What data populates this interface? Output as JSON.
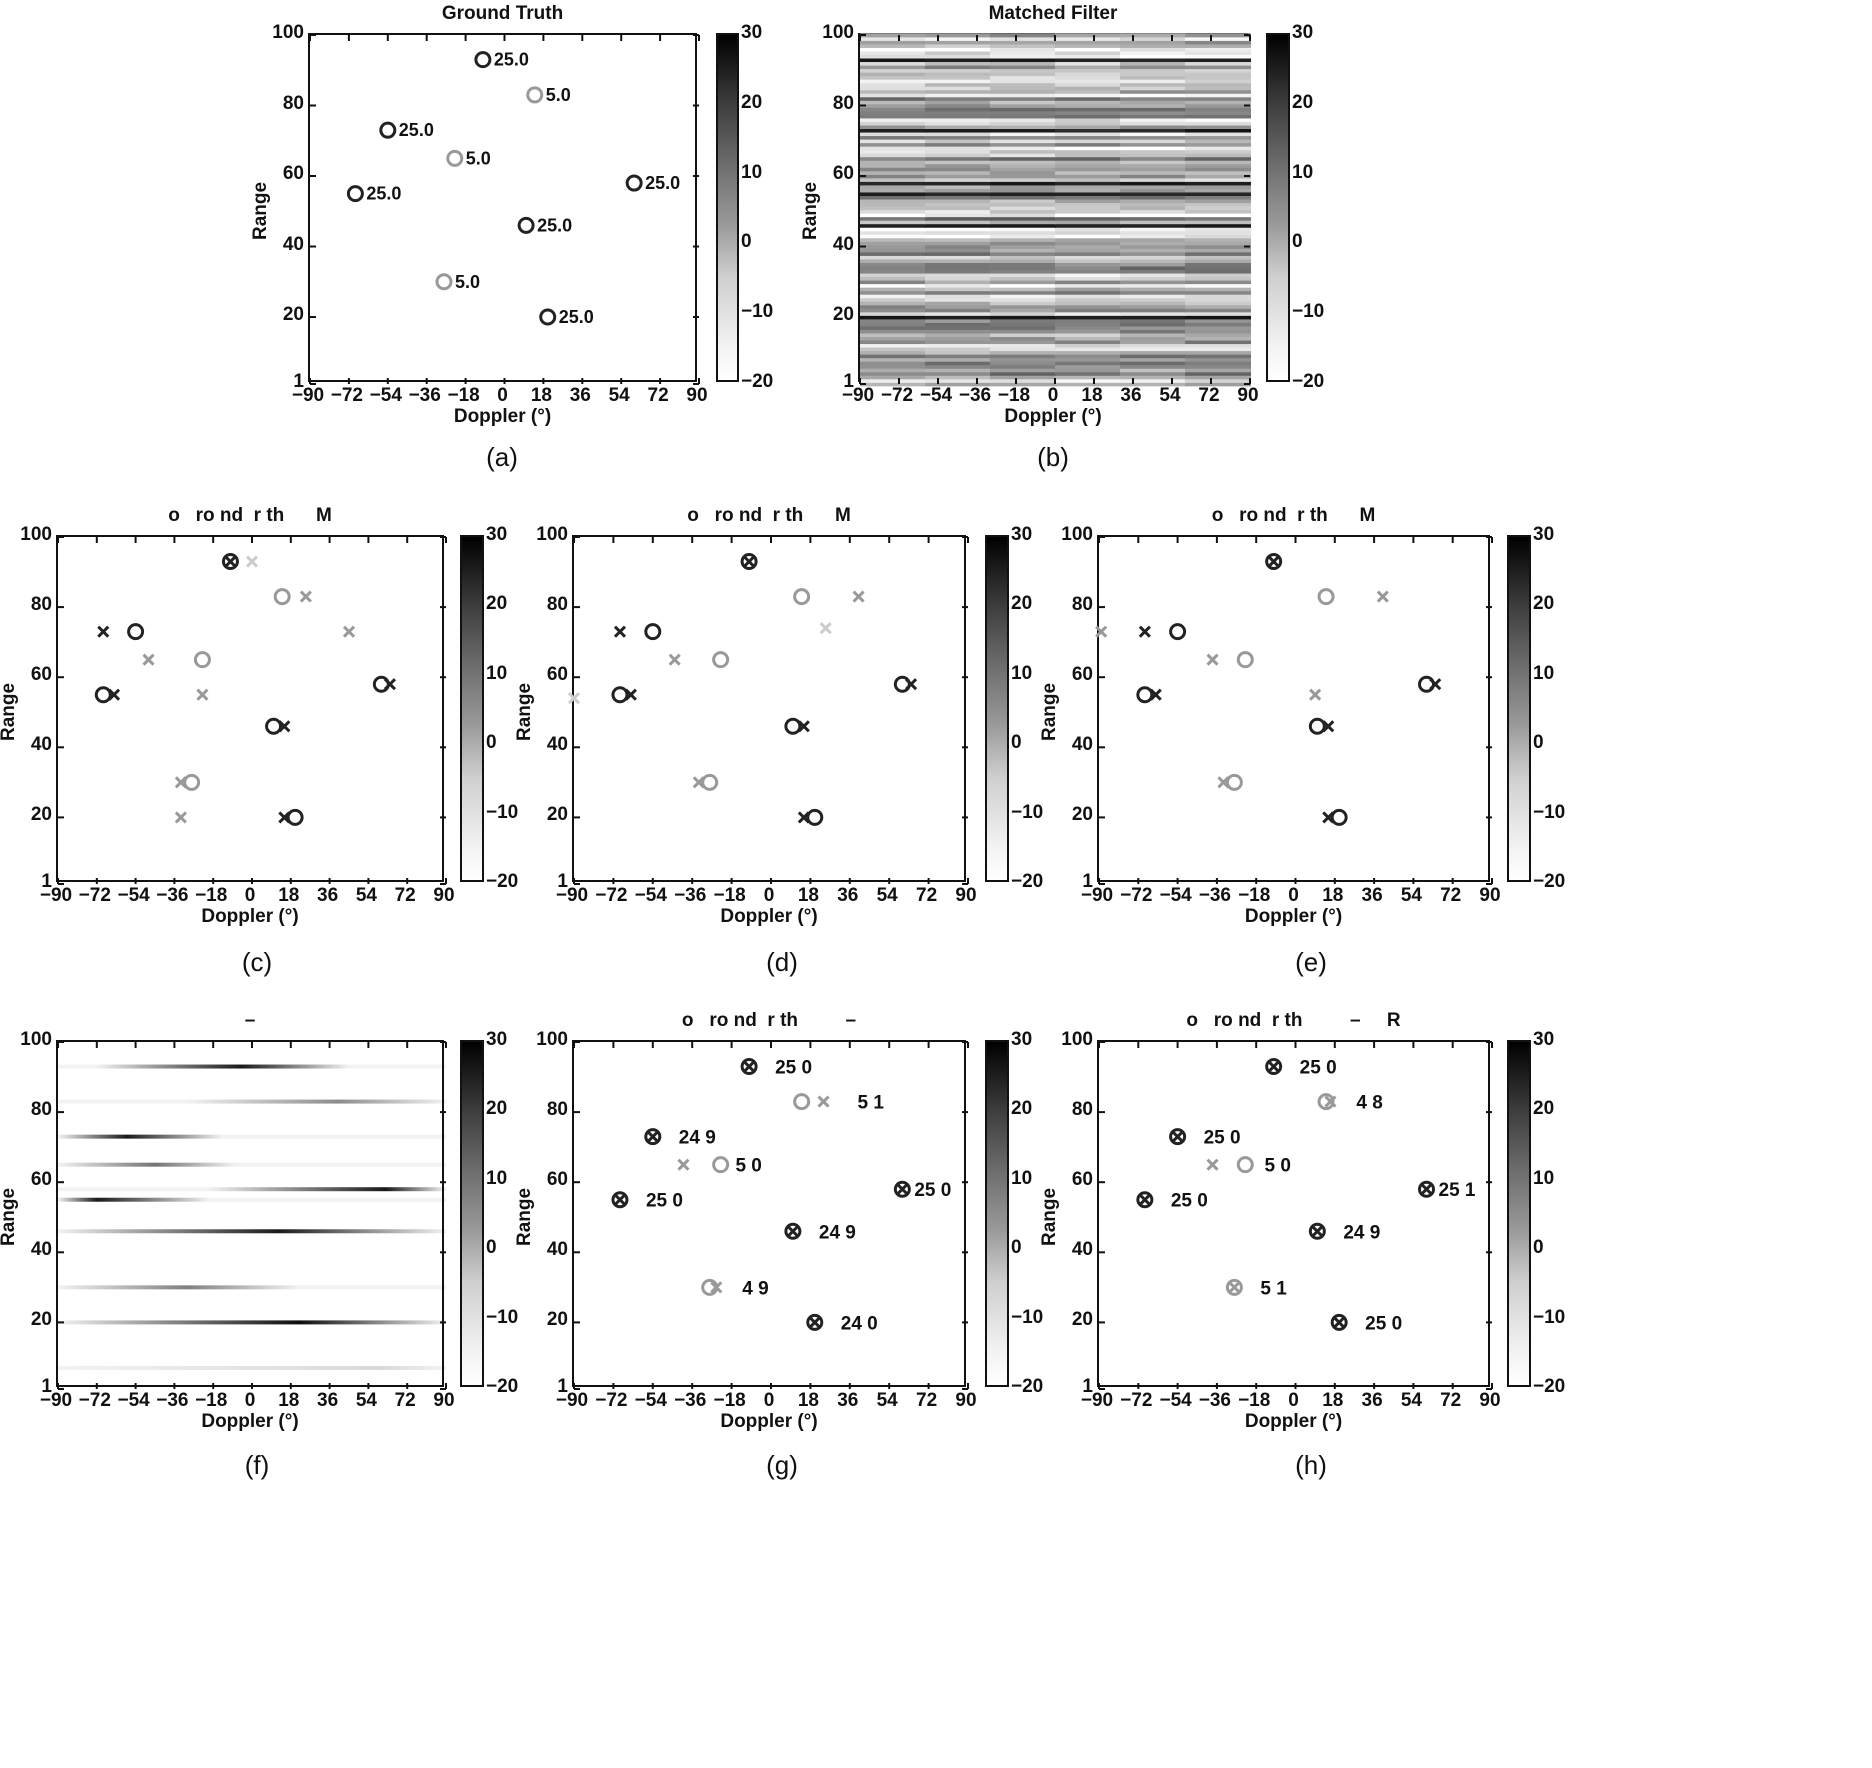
{
  "figure": {
    "sub_labels": [
      "(a)",
      "(b)",
      "(c)",
      "(d)",
      "(e)",
      "(f)",
      "(g)",
      "(h)"
    ]
  },
  "axes_common": {
    "xlabel": "Doppler (°)",
    "ylabel": "Range",
    "xticks": [
      "−90",
      "−72",
      "−54",
      "−36",
      "−18",
      "0",
      "18",
      "36",
      "54",
      "72",
      "90"
    ],
    "xtick_values": [
      -90,
      -72,
      -54,
      -36,
      -18,
      0,
      18,
      36,
      54,
      72,
      90
    ],
    "yticks": [
      "1",
      "20",
      "40",
      "60",
      "80",
      "100"
    ],
    "ytick_values": [
      1,
      20,
      40,
      60,
      80,
      100
    ],
    "colorbar_ticks": [
      "30",
      "20",
      "10",
      "0",
      "−10",
      "−20"
    ],
    "colorbar_values": [
      30,
      20,
      10,
      0,
      -10,
      -20
    ]
  },
  "colors": {
    "strong": "#222222",
    "weak": "#999999",
    "faint": "#cccccc",
    "axis": "#111111",
    "background": "#ffffff"
  },
  "chart_data": [
    {
      "id": "a",
      "type": "scatter",
      "title": "Ground Truth",
      "xlabel": "Doppler (°)",
      "ylabel": "Range",
      "xlim": [
        -90,
        90
      ],
      "ylim": [
        1,
        100
      ],
      "colorbar": {
        "min": -20,
        "max": 30
      },
      "truth": [
        {
          "x": -10,
          "y": 93,
          "amp": 25.0,
          "label": "25.0"
        },
        {
          "x": 14,
          "y": 83,
          "amp": 5.0,
          "label": "5.0"
        },
        {
          "x": -54,
          "y": 73,
          "amp": 25.0,
          "label": "25.0"
        },
        {
          "x": -23,
          "y": 65,
          "amp": 5.0,
          "label": "5.0"
        },
        {
          "x": -69,
          "y": 55,
          "amp": 25.0,
          "label": "25.0"
        },
        {
          "x": 60,
          "y": 58,
          "amp": 25.0,
          "label": "25.0"
        },
        {
          "x": 10,
          "y": 46,
          "amp": 25.0,
          "label": "25.0"
        },
        {
          "x": -28,
          "y": 30,
          "amp": 5.0,
          "label": "5.0"
        },
        {
          "x": 20,
          "y": 20,
          "amp": 25.0,
          "label": "25.0"
        }
      ],
      "estimates": []
    },
    {
      "id": "b",
      "type": "heatmap",
      "title": "Matched Filter",
      "xlabel": "Doppler (°)",
      "ylabel": "Range",
      "xlim": [
        -90,
        90
      ],
      "ylim": [
        1,
        100
      ],
      "colorbar": {
        "min": -20,
        "max": 30
      },
      "strong_rows": [
        93,
        73,
        58,
        55,
        46,
        20
      ],
      "background": "noisy"
    },
    {
      "id": "c",
      "type": "scatter",
      "title": "o   ro nd  r th      M",
      "xlabel": "Doppler (°)",
      "ylabel": "Range",
      "xlim": [
        -90,
        90
      ],
      "ylim": [
        1,
        100
      ],
      "colorbar": {
        "min": -20,
        "max": 30
      },
      "truth": [
        {
          "x": -10,
          "y": 93,
          "amp": 25.0
        },
        {
          "x": 14,
          "y": 83,
          "amp": 5.0
        },
        {
          "x": -54,
          "y": 73,
          "amp": 25.0
        },
        {
          "x": -23,
          "y": 65,
          "amp": 5.0
        },
        {
          "x": -69,
          "y": 55,
          "amp": 25.0
        },
        {
          "x": 60,
          "y": 58,
          "amp": 25.0
        },
        {
          "x": 10,
          "y": 46,
          "amp": 25.0
        },
        {
          "x": -28,
          "y": 30,
          "amp": 5.0
        },
        {
          "x": 20,
          "y": 20,
          "amp": 25.0
        }
      ],
      "estimates": [
        {
          "x": -10,
          "y": 93,
          "shade": "strong"
        },
        {
          "x": 0,
          "y": 93,
          "shade": "faint"
        },
        {
          "x": 25,
          "y": 83,
          "shade": "weak"
        },
        {
          "x": -69,
          "y": 73,
          "shade": "strong"
        },
        {
          "x": 45,
          "y": 73,
          "shade": "weak"
        },
        {
          "x": -48,
          "y": 65,
          "shade": "weak"
        },
        {
          "x": -64,
          "y": 55,
          "shade": "strong"
        },
        {
          "x": -23,
          "y": 55,
          "shade": "weak"
        },
        {
          "x": 64,
          "y": 58,
          "shade": "strong"
        },
        {
          "x": 15,
          "y": 46,
          "shade": "strong"
        },
        {
          "x": -33,
          "y": 30,
          "shade": "weak"
        },
        {
          "x": -33,
          "y": 20,
          "shade": "weak"
        },
        {
          "x": 15,
          "y": 20,
          "shade": "strong"
        }
      ]
    },
    {
      "id": "d",
      "type": "scatter",
      "title": "o   ro nd  r th      M",
      "xlabel": "Doppler (°)",
      "ylabel": "Range",
      "xlim": [
        -90,
        90
      ],
      "ylim": [
        1,
        100
      ],
      "colorbar": {
        "min": -20,
        "max": 30
      },
      "truth": [
        {
          "x": -10,
          "y": 93,
          "amp": 25.0
        },
        {
          "x": 14,
          "y": 83,
          "amp": 5.0
        },
        {
          "x": -54,
          "y": 73,
          "amp": 25.0
        },
        {
          "x": -23,
          "y": 65,
          "amp": 5.0
        },
        {
          "x": -69,
          "y": 55,
          "amp": 25.0
        },
        {
          "x": 60,
          "y": 58,
          "amp": 25.0
        },
        {
          "x": 10,
          "y": 46,
          "amp": 25.0
        },
        {
          "x": -28,
          "y": 30,
          "amp": 5.0
        },
        {
          "x": 20,
          "y": 20,
          "amp": 25.0
        }
      ],
      "estimates": [
        {
          "x": -10,
          "y": 93,
          "shade": "strong"
        },
        {
          "x": 40,
          "y": 83,
          "shade": "weak"
        },
        {
          "x": 25,
          "y": 74,
          "shade": "faint"
        },
        {
          "x": -69,
          "y": 73,
          "shade": "strong"
        },
        {
          "x": -44,
          "y": 65,
          "shade": "weak"
        },
        {
          "x": -90,
          "y": 54,
          "shade": "faint"
        },
        {
          "x": -64,
          "y": 55,
          "shade": "strong"
        },
        {
          "x": 64,
          "y": 58,
          "shade": "strong"
        },
        {
          "x": 15,
          "y": 46,
          "shade": "strong"
        },
        {
          "x": -33,
          "y": 30,
          "shade": "weak"
        },
        {
          "x": 15,
          "y": 20,
          "shade": "strong"
        }
      ]
    },
    {
      "id": "e",
      "type": "scatter",
      "title": "o   ro nd  r th      M",
      "xlabel": "Doppler (°)",
      "ylabel": "Range",
      "xlim": [
        -90,
        90
      ],
      "ylim": [
        1,
        100
      ],
      "colorbar": {
        "min": -20,
        "max": 30
      },
      "truth": [
        {
          "x": -10,
          "y": 93,
          "amp": 25.0
        },
        {
          "x": 14,
          "y": 83,
          "amp": 5.0
        },
        {
          "x": -54,
          "y": 73,
          "amp": 25.0
        },
        {
          "x": -23,
          "y": 65,
          "amp": 5.0
        },
        {
          "x": -69,
          "y": 55,
          "amp": 25.0
        },
        {
          "x": 60,
          "y": 58,
          "amp": 25.0
        },
        {
          "x": 10,
          "y": 46,
          "amp": 25.0
        },
        {
          "x": -28,
          "y": 30,
          "amp": 5.0
        },
        {
          "x": 20,
          "y": 20,
          "amp": 25.0
        }
      ],
      "estimates": [
        {
          "x": -10,
          "y": 93,
          "shade": "strong"
        },
        {
          "x": 40,
          "y": 83,
          "shade": "weak"
        },
        {
          "x": -89,
          "y": 73,
          "shade": "weak"
        },
        {
          "x": -69,
          "y": 73,
          "shade": "strong"
        },
        {
          "x": -38,
          "y": 65,
          "shade": "weak"
        },
        {
          "x": 9,
          "y": 55,
          "shade": "weak"
        },
        {
          "x": -64,
          "y": 55,
          "shade": "strong"
        },
        {
          "x": 64,
          "y": 58,
          "shade": "strong"
        },
        {
          "x": 15,
          "y": 46,
          "shade": "strong"
        },
        {
          "x": -33,
          "y": 30,
          "shade": "weak"
        },
        {
          "x": 15,
          "y": 20,
          "shade": "strong"
        }
      ]
    },
    {
      "id": "f",
      "type": "heatmap",
      "title": "–",
      "xlabel": "Doppler (°)",
      "ylabel": "Range",
      "xlim": [
        -90,
        90
      ],
      "ylim": [
        1,
        100
      ],
      "colorbar": {
        "min": -20,
        "max": 30
      },
      "streaks": [
        {
          "y": 93,
          "x_center": -5,
          "x_from": -72,
          "x_to": 45,
          "strength": 0.9
        },
        {
          "y": 83,
          "x_center": 40,
          "x_from": -30,
          "x_to": 90,
          "strength": 0.45
        },
        {
          "y": 73,
          "x_center": -58,
          "x_from": -90,
          "x_to": -14,
          "strength": 0.9
        },
        {
          "y": 65,
          "x_center": -45,
          "x_from": -90,
          "x_to": -8,
          "strength": 0.55
        },
        {
          "y": 58,
          "x_center": 62,
          "x_from": -20,
          "x_to": 90,
          "strength": 0.9
        },
        {
          "y": 55,
          "x_center": -72,
          "x_from": -90,
          "x_to": -20,
          "strength": 0.9
        },
        {
          "y": 46,
          "x_center": 12,
          "x_from": -90,
          "x_to": 90,
          "strength": 0.9
        },
        {
          "y": 30,
          "x_center": -30,
          "x_from": -90,
          "x_to": 22,
          "strength": 0.5
        },
        {
          "y": 20,
          "x_center": 22,
          "x_from": -90,
          "x_to": 90,
          "strength": 0.95
        },
        {
          "y": 7,
          "x_center": 60,
          "x_from": -90,
          "x_to": 90,
          "strength": 0.15
        }
      ]
    },
    {
      "id": "g",
      "type": "scatter",
      "title": "o   ro nd  r th         –",
      "xlabel": "Doppler (°)",
      "ylabel": "Range",
      "xlim": [
        -90,
        90
      ],
      "ylim": [
        1,
        100
      ],
      "colorbar": {
        "min": -20,
        "max": 30
      },
      "truth": [
        {
          "x": -10,
          "y": 93,
          "amp": 25.0
        },
        {
          "x": 14,
          "y": 83,
          "amp": 5.0
        },
        {
          "x": -54,
          "y": 73,
          "amp": 25.0
        },
        {
          "x": -23,
          "y": 65,
          "amp": 5.0
        },
        {
          "x": -69,
          "y": 55,
          "amp": 25.0
        },
        {
          "x": 60,
          "y": 58,
          "amp": 25.0
        },
        {
          "x": 10,
          "y": 46,
          "amp": 25.0
        },
        {
          "x": -28,
          "y": 30,
          "amp": 5.0
        },
        {
          "x": 20,
          "y": 20,
          "amp": 25.0
        }
      ],
      "estimates": [
        {
          "x": -10,
          "y": 93,
          "shade": "strong",
          "label": "25 0",
          "lx": 0
        },
        {
          "x": 24,
          "y": 83,
          "shade": "weak",
          "label": "5 1",
          "lx": 8
        },
        {
          "x": -54,
          "y": 73,
          "shade": "strong",
          "label": "24 9",
          "lx": 0
        },
        {
          "x": -40,
          "y": 65,
          "shade": "weak",
          "label": "5 0",
          "lx": 26
        },
        {
          "x": -69,
          "y": 55,
          "shade": "strong",
          "label": "25 0",
          "lx": 0
        },
        {
          "x": 60,
          "y": 58,
          "shade": "strong",
          "label": "25 0",
          "lx": -14
        },
        {
          "x": 10,
          "y": 46,
          "shade": "strong",
          "label": "24 9",
          "lx": 0
        },
        {
          "x": -25,
          "y": 30,
          "shade": "weak",
          "label": "4 9",
          "lx": 0
        },
        {
          "x": 20,
          "y": 20,
          "shade": "strong",
          "label": "24 0",
          "lx": 0
        }
      ]
    },
    {
      "id": "h",
      "type": "scatter",
      "title": "o   ro nd  r th         –     R",
      "xlabel": "Doppler (°)",
      "ylabel": "Range",
      "xlim": [
        -90,
        90
      ],
      "ylim": [
        1,
        100
      ],
      "colorbar": {
        "min": -20,
        "max": 30
      },
      "truth": [
        {
          "x": -10,
          "y": 93,
          "amp": 25.0
        },
        {
          "x": 14,
          "y": 83,
          "amp": 5.0
        },
        {
          "x": -54,
          "y": 73,
          "amp": 25.0
        },
        {
          "x": -23,
          "y": 65,
          "amp": 5.0
        },
        {
          "x": -69,
          "y": 55,
          "amp": 25.0
        },
        {
          "x": 60,
          "y": 58,
          "amp": 25.0
        },
        {
          "x": 10,
          "y": 46,
          "amp": 25.0
        },
        {
          "x": -28,
          "y": 30,
          "amp": 5.0
        },
        {
          "x": 20,
          "y": 20,
          "amp": 25.0
        }
      ],
      "estimates": [
        {
          "x": -10,
          "y": 93,
          "shade": "strong",
          "label": "25 0",
          "lx": 0
        },
        {
          "x": 16,
          "y": 83,
          "shade": "weak",
          "label": "4 8",
          "lx": 0
        },
        {
          "x": -54,
          "y": 73,
          "shade": "strong",
          "label": "25 0",
          "lx": 0
        },
        {
          "x": -38,
          "y": 65,
          "shade": "weak",
          "label": "5 0",
          "lx": 26
        },
        {
          "x": -69,
          "y": 55,
          "shade": "strong",
          "label": "25 0",
          "lx": 0
        },
        {
          "x": 60,
          "y": 58,
          "shade": "strong",
          "label": "25 1",
          "lx": -14
        },
        {
          "x": 10,
          "y": 46,
          "shade": "strong",
          "label": "24 9",
          "lx": 0
        },
        {
          "x": -28,
          "y": 30,
          "shade": "weak",
          "label": "5 1",
          "lx": 0
        },
        {
          "x": 20,
          "y": 20,
          "shade": "strong",
          "label": "25 0",
          "lx": 0
        }
      ]
    }
  ]
}
